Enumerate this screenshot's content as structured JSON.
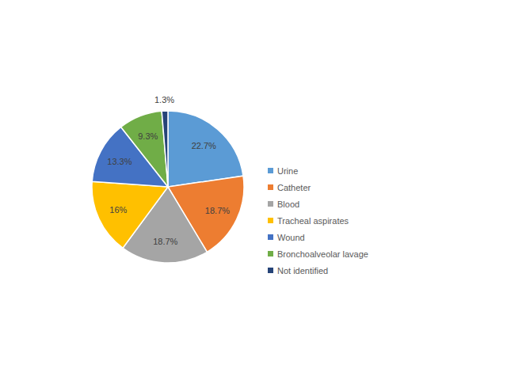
{
  "chart_data": {
    "type": "pie",
    "categories": [
      "Urine",
      "Catheter",
      "Blood",
      "Tracheal aspirates",
      "Wound",
      "Bronchoalveolar lavage",
      "Not identified"
    ],
    "values": [
      22.7,
      18.7,
      18.7,
      16,
      13.3,
      9.3,
      1.3
    ],
    "value_labels": [
      "22.7%",
      "18.7%",
      "18.7%",
      "16%",
      "13.3%",
      "9.3%",
      "1.3%"
    ],
    "colors": [
      "#5b9bd5",
      "#ed7d31",
      "#a5a5a5",
      "#ffc000",
      "#4472c4",
      "#70ad47",
      "#264478"
    ],
    "data_labels": true,
    "legend": "right"
  }
}
